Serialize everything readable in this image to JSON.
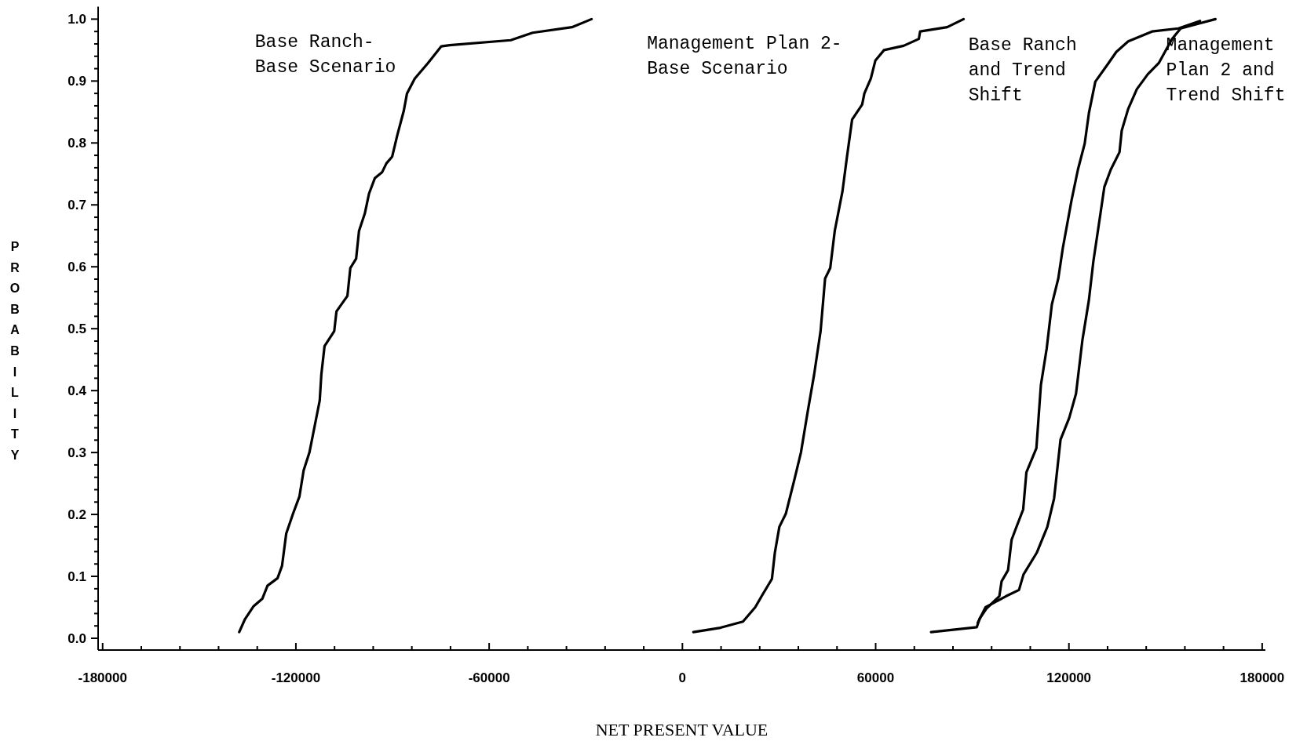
{
  "chart_data": {
    "type": "line",
    "xlabel": "NET PRESENT VALUE",
    "ylabel": "PROBABILITY",
    "xlim": [
      -181400,
      181000
    ],
    "ylim": [
      -0.019,
      1.02
    ],
    "xticks": [
      -180000,
      {
        "value": -168000,
        "label": null
      },
      {
        "value": -156000,
        "label": null
      },
      {
        "value": -144000,
        "label": null
      },
      {
        "value": -132000,
        "label": null
      },
      -120000,
      {
        "value": -108000,
        "label": null
      },
      {
        "value": -96000,
        "label": null
      },
      {
        "value": -84000,
        "label": null
      },
      {
        "value": -72000,
        "label": null
      },
      -60000,
      {
        "value": -48000,
        "label": null
      },
      {
        "value": -36000,
        "label": null
      },
      {
        "value": -24000,
        "label": null
      },
      {
        "value": -12000,
        "label": null
      },
      0,
      {
        "value": 12000,
        "label": null
      },
      {
        "value": 24000,
        "label": null
      },
      {
        "value": 36000,
        "label": null
      },
      {
        "value": 48000,
        "label": null
      },
      60000,
      {
        "value": 72000,
        "label": null
      },
      {
        "value": 84000,
        "label": null
      },
      {
        "value": 96000,
        "label": null
      },
      {
        "value": 108000,
        "label": null
      },
      120000,
      {
        "value": 132000,
        "label": null
      },
      {
        "value": 144000,
        "label": null
      },
      {
        "value": 156000,
        "label": null
      },
      {
        "value": 168000,
        "label": null
      },
      180000
    ],
    "yticks": [
      {
        "value": 0,
        "label": "0.0"
      },
      {
        "value": 0.02,
        "label": null
      },
      {
        "value": 0.04,
        "label": null
      },
      {
        "value": 0.06,
        "label": null
      },
      {
        "value": 0.08,
        "label": null
      },
      0.1,
      {
        "value": 0.12,
        "label": null
      },
      {
        "value": 0.14,
        "label": null
      },
      {
        "value": 0.16,
        "label": null
      },
      {
        "value": 0.18,
        "label": null
      },
      0.2,
      {
        "value": 0.22,
        "label": null
      },
      {
        "value": 0.24,
        "label": null
      },
      {
        "value": 0.26,
        "label": null
      },
      {
        "value": 0.28,
        "label": null
      },
      0.3,
      {
        "value": 0.32,
        "label": null
      },
      {
        "value": 0.34,
        "label": null
      },
      {
        "value": 0.36,
        "label": null
      },
      {
        "value": 0.38,
        "label": null
      },
      0.4,
      {
        "value": 0.42,
        "label": null
      },
      {
        "value": 0.44,
        "label": null
      },
      {
        "value": 0.46,
        "label": null
      },
      {
        "value": 0.48,
        "label": null
      },
      0.5,
      {
        "value": 0.52,
        "label": null
      },
      {
        "value": 0.54,
        "label": null
      },
      {
        "value": 0.56,
        "label": null
      },
      {
        "value": 0.58,
        "label": null
      },
      0.6,
      {
        "value": 0.62,
        "label": null
      },
      {
        "value": 0.64,
        "label": null
      },
      {
        "value": 0.66,
        "label": null
      },
      {
        "value": 0.68,
        "label": null
      },
      0.7,
      {
        "value": 0.72,
        "label": null
      },
      {
        "value": 0.74,
        "label": null
      },
      {
        "value": 0.76,
        "label": null
      },
      {
        "value": 0.78,
        "label": null
      },
      0.8,
      {
        "value": 0.82,
        "label": null
      },
      {
        "value": 0.84,
        "label": null
      },
      {
        "value": 0.86,
        "label": null
      },
      {
        "value": 0.88,
        "label": null
      },
      0.9,
      {
        "value": 0.92,
        "label": null
      },
      {
        "value": 0.94,
        "label": null
      },
      {
        "value": 0.96,
        "label": null
      },
      {
        "value": 0.98,
        "label": null
      },
      {
        "value": 1,
        "label": "1.0"
      }
    ],
    "series": [
      {
        "name": "Base Ranch-\nBase Scenario",
        "color": "#000000",
        "x": [
          -137600,
          -135800,
          -133100,
          -130400,
          -128800,
          -125700,
          -124300,
          -123000,
          -120900,
          -118900,
          -117600,
          -115800,
          -114200,
          -112600,
          -112100,
          -111100,
          -108100,
          -107400,
          -104000,
          -103100,
          -101300,
          -100400,
          -98600,
          -97300,
          -95500,
          -93200,
          -91900,
          -90100,
          -88500,
          -86500,
          -85500,
          -83100,
          -79000,
          -74900,
          -72300,
          -53300,
          -46500,
          -34300,
          -28200
        ],
        "values": [
          0.01,
          0.031,
          0.052,
          0.064,
          0.085,
          0.097,
          0.117,
          0.169,
          0.201,
          0.229,
          0.271,
          0.3,
          0.342,
          0.384,
          0.426,
          0.472,
          0.496,
          0.528,
          0.553,
          0.598,
          0.613,
          0.658,
          0.686,
          0.718,
          0.743,
          0.753,
          0.767,
          0.778,
          0.813,
          0.852,
          0.88,
          0.904,
          0.929,
          0.956,
          0.958,
          0.966,
          0.978,
          0.987,
          1.0
        ]
      },
      {
        "name": "Management Plan 2-\nBase Scenario",
        "color": "#000000",
        "x": [
          3400,
          11800,
          18800,
          22600,
          24600,
          27800,
          28700,
          30100,
          32100,
          34800,
          36800,
          38900,
          40900,
          42900,
          44300,
          45900,
          47300,
          49700,
          51100,
          52700,
          55800,
          56500,
          58500,
          59900,
          62600,
          68700,
          73400,
          73800,
          82200,
          87300
        ],
        "values": [
          0.01,
          0.017,
          0.027,
          0.05,
          0.068,
          0.096,
          0.138,
          0.18,
          0.201,
          0.257,
          0.3,
          0.366,
          0.426,
          0.496,
          0.581,
          0.598,
          0.658,
          0.722,
          0.778,
          0.838,
          0.862,
          0.88,
          0.904,
          0.933,
          0.95,
          0.957,
          0.968,
          0.98,
          0.987,
          1.0
        ]
      },
      {
        "name": "Base Ranch\nand Trend\nShift",
        "color": "#000000",
        "x": [
          77200,
          91400,
          92300,
          94400,
          98400,
          99100,
          101100,
          102200,
          103500,
          105800,
          106800,
          109900,
          111300,
          113100,
          114700,
          116700,
          118100,
          120800,
          122800,
          124900,
          126200,
          128200,
          132300,
          134700,
          138400,
          145800,
          154000,
          160700
        ],
        "values": [
          0.01,
          0.018,
          0.032,
          0.048,
          0.068,
          0.092,
          0.11,
          0.159,
          0.177,
          0.208,
          0.268,
          0.307,
          0.409,
          0.468,
          0.539,
          0.581,
          0.63,
          0.707,
          0.757,
          0.799,
          0.848,
          0.899,
          0.929,
          0.947,
          0.964,
          0.98,
          0.985,
          0.997
        ]
      },
      {
        "name": "Management\nPlan 2 and\nTrend Shift",
        "color": "#000000",
        "x": [
          91700,
          94100,
          100500,
          104500,
          105900,
          110000,
          113300,
          115400,
          117400,
          120100,
          122200,
          124200,
          126200,
          127600,
          129600,
          131000,
          133000,
          135700,
          136400,
          138400,
          141100,
          144500,
          147900,
          152000,
          154700,
          165500
        ],
        "values": [
          0.025,
          0.05,
          0.068,
          0.078,
          0.103,
          0.138,
          0.18,
          0.226,
          0.321,
          0.356,
          0.395,
          0.482,
          0.546,
          0.609,
          0.679,
          0.729,
          0.757,
          0.785,
          0.82,
          0.855,
          0.887,
          0.911,
          0.929,
          0.968,
          0.985,
          1.0
        ]
      }
    ]
  }
}
